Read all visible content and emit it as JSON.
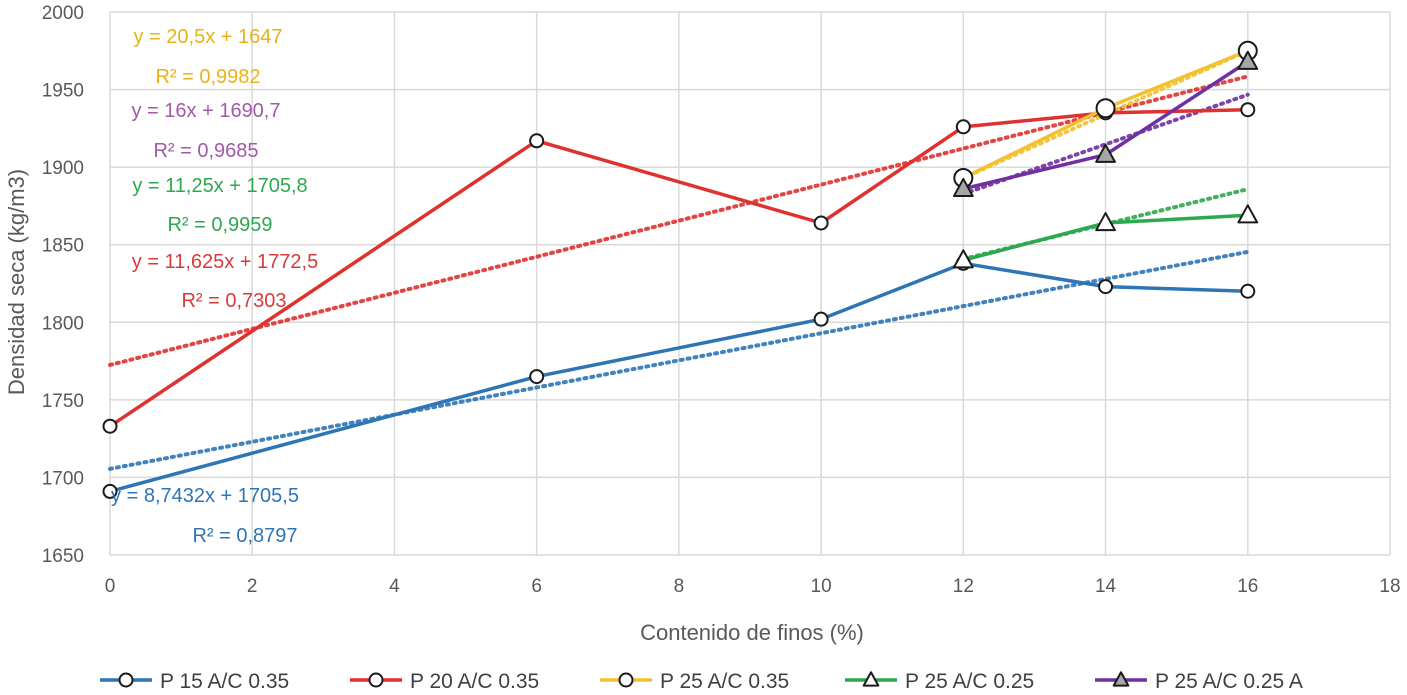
{
  "chart_data": {
    "type": "line",
    "title": "",
    "xlabel": "Contenido de finos (%)",
    "ylabel": "Densidad seca (kg/m3)",
    "xlim": [
      0,
      18
    ],
    "ylim": [
      1650,
      2000
    ],
    "x_ticks": [
      "0",
      "2",
      "4",
      "6",
      "8",
      "10",
      "12",
      "14",
      "16",
      "18"
    ],
    "y_ticks": [
      "1650",
      "1700",
      "1750",
      "1800",
      "1850",
      "1900",
      "1950",
      "2000"
    ],
    "grid": true,
    "legend_position": "bottom",
    "series": [
      {
        "name": "P 15 A/C 0.35",
        "color": "#2e75b6",
        "marker": "circle",
        "marker_fill": "#ffffff",
        "x": [
          0,
          6,
          10,
          12,
          14,
          16
        ],
        "y": [
          1691,
          1765,
          1802,
          1838,
          1823,
          1820
        ],
        "trend": {
          "slope": 8.7432,
          "intercept": 1705.5,
          "equation": "y = 8,7432x + 1705,5",
          "r2": "R² = 0,8797"
        }
      },
      {
        "name": "P 20 A/C 0.35",
        "color": "#e03131",
        "marker": "circle",
        "marker_fill": "#ffffff",
        "x": [
          0,
          6,
          10,
          12,
          14,
          16
        ],
        "y": [
          1733,
          1917,
          1864,
          1926,
          1935,
          1937
        ],
        "trend": {
          "slope": 11.625,
          "intercept": 1772.5,
          "equation": "y = 11,625x + 1772,5",
          "r2": "R² = 0,7303"
        }
      },
      {
        "name": "P 25 A/C 0.35",
        "color": "#f2c12e",
        "marker": "circle",
        "marker_fill": "#ffffff",
        "x": [
          12,
          14,
          16
        ],
        "y": [
          1893,
          1938,
          1975
        ],
        "trend": {
          "slope": 20.5,
          "intercept": 1647,
          "equation": "y = 20,5x + 1647",
          "r2": "R² = 0,9982"
        }
      },
      {
        "name": "P 25 A/C 0.25",
        "color": "#2ea84f",
        "marker": "triangle",
        "marker_fill": "#ffffff",
        "x": [
          12,
          14,
          16
        ],
        "y": [
          1840,
          1864,
          1869
        ],
        "trend": {
          "slope": 11.25,
          "intercept": 1705.8,
          "equation": "y = 11,25x + 1705,8",
          "r2": "R² = 0,9959"
        }
      },
      {
        "name": "P 25 A/C 0.25 A",
        "color": "#7030a0",
        "marker": "triangle",
        "marker_fill": "#a6a6a6",
        "x": [
          12,
          14,
          16
        ],
        "y": [
          1886,
          1908,
          1968
        ],
        "trend": {
          "slope": 16,
          "intercept": 1690.7,
          "equation": "y = 16x + 1690,7",
          "r2": "R² = 0,9685"
        }
      }
    ]
  }
}
